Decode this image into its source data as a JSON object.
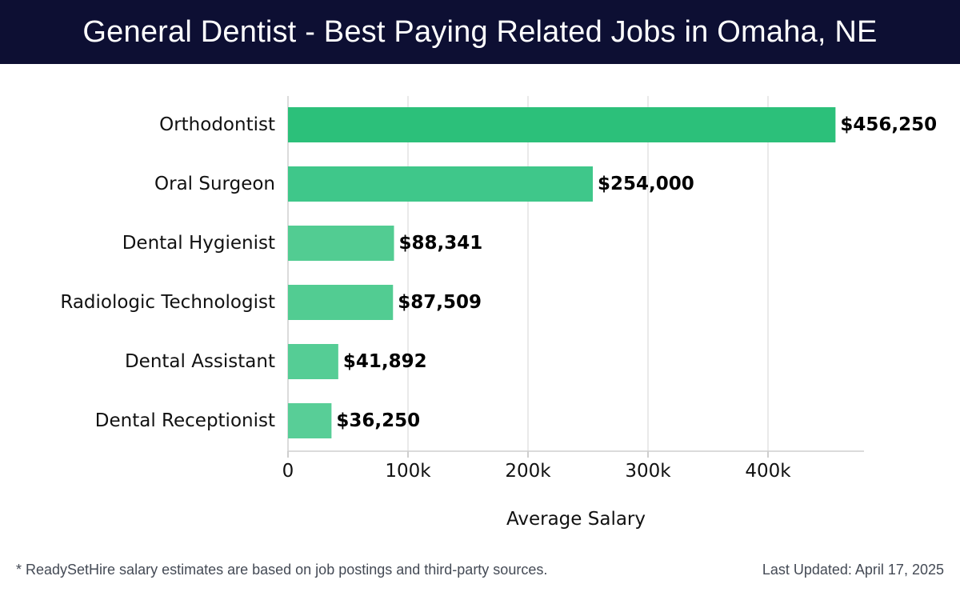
{
  "header": {
    "title": "General Dentist - Best Paying Related Jobs in Omaha, NE"
  },
  "footer": {
    "note": "* ReadySetHire salary estimates are based on job postings and third-party sources.",
    "updated": "Last Updated: April 17, 2025"
  },
  "chart_data": {
    "type": "bar",
    "orientation": "horizontal",
    "categories": [
      "Orthodontist",
      "Oral Surgeon",
      "Dental Hygienist",
      "Radiologic Technologist",
      "Dental Assistant",
      "Dental Receptionist"
    ],
    "values": [
      456250,
      254000,
      88341,
      87509,
      41892,
      36250
    ],
    "value_labels": [
      "$456,250",
      "$254,000",
      "$88,341",
      "$87,509",
      "$41,892",
      "$36,250"
    ],
    "xlabel": "Average Salary",
    "ylabel": "",
    "xlim": [
      0,
      480000
    ],
    "xticks": [
      0,
      100000,
      200000,
      300000,
      400000
    ],
    "xtick_labels": [
      "0",
      "100k",
      "200k",
      "300k",
      "400k"
    ],
    "grid": "vertical",
    "colors": [
      "#2cc07a",
      "#3fc78a",
      "#52cc92",
      "#52cc92",
      "#55cd95",
      "#58ce97"
    ]
  }
}
